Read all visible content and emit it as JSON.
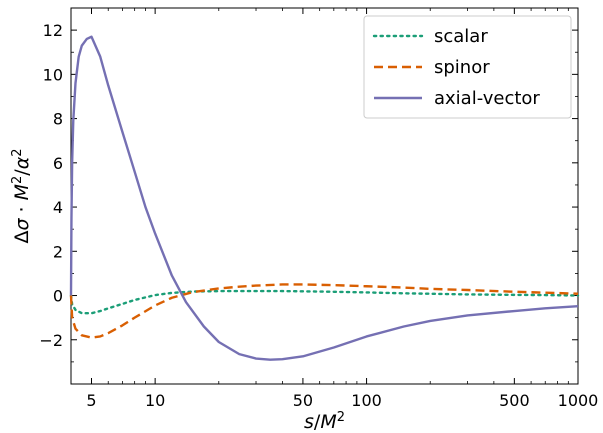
{
  "chart_data": {
    "type": "line",
    "xscale": "log",
    "xlabel": "s/M²",
    "ylabel": "Δσ · M²/α²",
    "xlim": [
      4,
      1000
    ],
    "ylim": [
      -4,
      13
    ],
    "x_ticks": [
      5,
      10,
      50,
      100,
      500,
      1000
    ],
    "x_tick_labels": [
      "5",
      "10",
      "50",
      "100",
      "500",
      "1000"
    ],
    "y_ticks": [
      -2,
      0,
      2,
      4,
      6,
      8,
      10,
      12
    ],
    "y_tick_labels": [
      "−2",
      "0",
      "2",
      "4",
      "6",
      "8",
      "10",
      "12"
    ],
    "grid": false,
    "legend_position": "top-right",
    "series": [
      {
        "name": "scalar",
        "color": "#1b9e77",
        "style": "dotted",
        "x": [
          4,
          4.05,
          4.2,
          4.5,
          5,
          5.5,
          6,
          7,
          8,
          10,
          12,
          15,
          20,
          30,
          40,
          50,
          70,
          100,
          150,
          200,
          300,
          500,
          700,
          1000
        ],
        "y": [
          0,
          -0.4,
          -0.65,
          -0.8,
          -0.8,
          -0.7,
          -0.58,
          -0.38,
          -0.2,
          0.02,
          0.12,
          0.18,
          0.2,
          0.2,
          0.2,
          0.19,
          0.17,
          0.14,
          0.1,
          0.08,
          0.05,
          0.03,
          0.02,
          0.0
        ]
      },
      {
        "name": "spinor",
        "color": "#d95f02",
        "style": "dashed",
        "x": [
          4,
          4.05,
          4.2,
          4.5,
          5,
          5.5,
          6,
          7,
          8,
          10,
          12,
          15,
          20,
          25,
          30,
          40,
          50,
          70,
          100,
          150,
          200,
          300,
          500,
          700,
          1000
        ],
        "y": [
          0,
          -1.0,
          -1.5,
          -1.8,
          -1.9,
          -1.85,
          -1.7,
          -1.35,
          -1.0,
          -0.45,
          -0.1,
          0.15,
          0.32,
          0.4,
          0.45,
          0.5,
          0.5,
          0.47,
          0.42,
          0.36,
          0.3,
          0.25,
          0.17,
          0.13,
          0.08
        ]
      },
      {
        "name": "axial-vector",
        "color": "#7570b3",
        "style": "solid",
        "x": [
          4,
          4.02,
          4.05,
          4.1,
          4.2,
          4.35,
          4.5,
          4.75,
          5,
          5.5,
          6,
          7,
          8,
          9,
          10,
          12,
          14,
          17,
          20,
          25,
          30,
          35,
          40,
          50,
          70,
          100,
          150,
          200,
          300,
          500,
          700,
          1000
        ],
        "y": [
          0,
          3.5,
          6.0,
          7.9,
          9.6,
          10.8,
          11.3,
          11.6,
          11.7,
          10.8,
          9.5,
          7.4,
          5.6,
          4.0,
          2.8,
          0.9,
          -0.3,
          -1.4,
          -2.1,
          -2.65,
          -2.85,
          -2.9,
          -2.88,
          -2.75,
          -2.35,
          -1.85,
          -1.4,
          -1.15,
          -0.9,
          -0.7,
          -0.58,
          -0.48
        ]
      }
    ]
  }
}
